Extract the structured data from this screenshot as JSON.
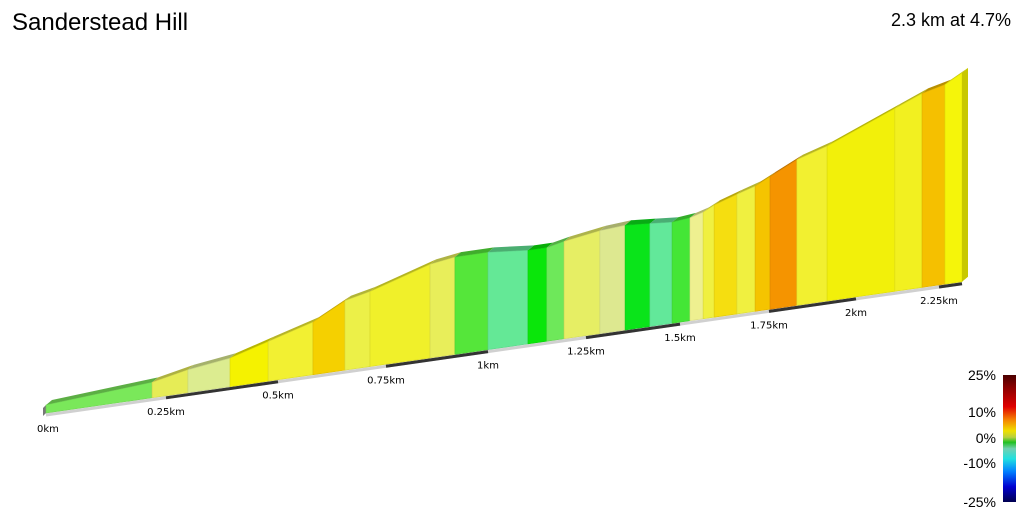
{
  "title": "Sanderstead Hill",
  "stats": "2.3 km at 4.7%",
  "chart_data": {
    "type": "area",
    "xlabel": "",
    "ylabel": "",
    "x_ticks": [
      "0km",
      "0.25km",
      "0.5km",
      "0.75km",
      "1km",
      "1.25km",
      "1.5km",
      "1.75km",
      "2km",
      "2.25km"
    ],
    "total_km": 2.3,
    "segments": [
      {
        "to_km": 0.221,
        "elev_end_m": 4,
        "color": "#7ae85a"
      },
      {
        "to_km": 0.299,
        "elev_end_m": 8,
        "color": "#e6ec56"
      },
      {
        "to_km": 0.393,
        "elev_end_m": 11,
        "color": "#dcec90"
      },
      {
        "to_km": 0.478,
        "elev_end_m": 17,
        "color": "#f5f200"
      },
      {
        "to_km": 0.581,
        "elev_end_m": 24,
        "color": "#f2f032"
      },
      {
        "to_km": 0.655,
        "elev_end_m": 33,
        "color": "#f5d000"
      },
      {
        "to_km": 0.713,
        "elev_end_m": 36,
        "color": "#ecf048"
      },
      {
        "to_km": 0.858,
        "elev_end_m": 46,
        "color": "#f0f02a"
      },
      {
        "to_km": 0.919,
        "elev_end_m": 48,
        "color": "#e8ee5a"
      },
      {
        "to_km": 1.0,
        "elev_end_m": 48,
        "color": "#55e63a"
      },
      {
        "to_km": 1.102,
        "elev_end_m": 46,
        "color": "#64e896"
      },
      {
        "to_km": 1.15,
        "elev_end_m": 46,
        "color": "#0ae60a"
      },
      {
        "to_km": 1.194,
        "elev_end_m": 48,
        "color": "#6ee85a"
      },
      {
        "to_km": 1.287,
        "elev_end_m": 51,
        "color": "#e6ee64"
      },
      {
        "to_km": 1.354,
        "elev_end_m": 52,
        "color": "#dde890"
      },
      {
        "to_km": 1.42,
        "elev_end_m": 51,
        "color": "#0ae41a"
      },
      {
        "to_km": 1.479,
        "elev_end_m": 50,
        "color": "#62e89a"
      },
      {
        "to_km": 1.528,
        "elev_end_m": 51,
        "color": "#44e636"
      },
      {
        "to_km": 1.565,
        "elev_end_m": 53,
        "color": "#eef090"
      },
      {
        "to_km": 1.596,
        "elev_end_m": 56,
        "color": "#f0f040"
      },
      {
        "to_km": 1.66,
        "elev_end_m": 60,
        "color": "#f5de10"
      },
      {
        "to_km": 1.711,
        "elev_end_m": 63,
        "color": "#f0f040"
      },
      {
        "to_km": 1.753,
        "elev_end_m": 67,
        "color": "#f5c400"
      },
      {
        "to_km": 1.83,
        "elev_end_m": 74,
        "color": "#f59400"
      },
      {
        "to_km": 1.917,
        "elev_end_m": 79,
        "color": "#f2f030"
      },
      {
        "to_km": 2.117,
        "elev_end_m": 94,
        "color": "#f2f00a"
      },
      {
        "to_km": 2.199,
        "elev_end_m": 100,
        "color": "#f2f020"
      },
      {
        "to_km": 2.263,
        "elev_end_m": 103,
        "color": "#f5c000"
      },
      {
        "to_km": 2.3,
        "elev_end_m": 108,
        "color": "#f5f50a"
      }
    ],
    "legend": {
      "labels": [
        "25%",
        "10%",
        "0%",
        "-10%",
        "-25%"
      ],
      "range_pct": [
        -25,
        25
      ]
    }
  }
}
